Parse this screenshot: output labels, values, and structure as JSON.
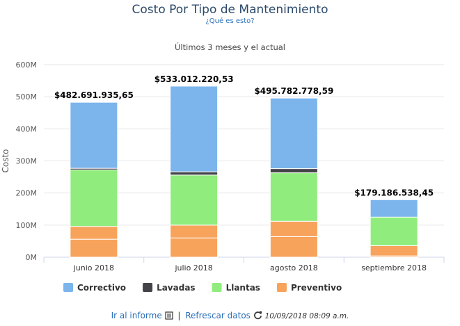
{
  "header": {
    "title": "Costo Por Tipo de Mantenimiento",
    "help_link": "¿Qué es esto?",
    "subtitle": "Últimos 3 meses y el actual"
  },
  "footer": {
    "report_link": "Ir al informe",
    "separator": "|",
    "refresh_link": "Refrescar datos",
    "timestamp": "10/09/2018 08:09 a.m."
  },
  "colors": {
    "Correctivo": "#7cb5ec",
    "Lavadas": "#434348",
    "Llantas": "#90ed7d",
    "Preventivo": "#f7a35c"
  },
  "chart_data": {
    "type": "bar",
    "stacked": true,
    "title": "Costo Por Tipo de Mantenimiento",
    "subtitle": "Últimos 3 meses y el actual",
    "xlabel": "",
    "ylabel": "Costo",
    "ylim": [
      0,
      600000000
    ],
    "yticks": [
      0,
      100000000,
      200000000,
      300000000,
      400000000,
      500000000,
      600000000
    ],
    "ytick_labels": [
      "0M",
      "100M",
      "200M",
      "300M",
      "400M",
      "500M",
      "600M"
    ],
    "categories": [
      "junio 2018",
      "julio 2018",
      "agosto 2018",
      "septiembre 2018"
    ],
    "series": [
      {
        "name": "Preventivo",
        "values": [
          56000000,
          60000000,
          64000000,
          4000000
        ]
      },
      {
        "name": "Preventivo",
        "values": [
          40000000,
          40000000,
          48000000,
          32000000
        ]
      },
      {
        "name": "Llantas",
        "values": [
          176000000,
          156000000,
          151000000,
          89000000
        ]
      },
      {
        "name": "Lavadas",
        "values": [
          5000000,
          10000000,
          13000000,
          0
        ]
      },
      {
        "name": "Correctivo",
        "values": [
          205691935.65,
          267012220.53,
          219782778.59,
          54186538.45
        ]
      }
    ],
    "totals": [
      482691935.65,
      533012220.53,
      495782778.59,
      179186538.45
    ],
    "total_labels": [
      "$482.691.935,65",
      "$533.012.220,53",
      "$495.782.778,59",
      "$179.186.538,45"
    ],
    "legend": [
      "Correctivo",
      "Lavadas",
      "Llantas",
      "Preventivo"
    ],
    "legend_position": "bottom-left",
    "grid": true
  }
}
